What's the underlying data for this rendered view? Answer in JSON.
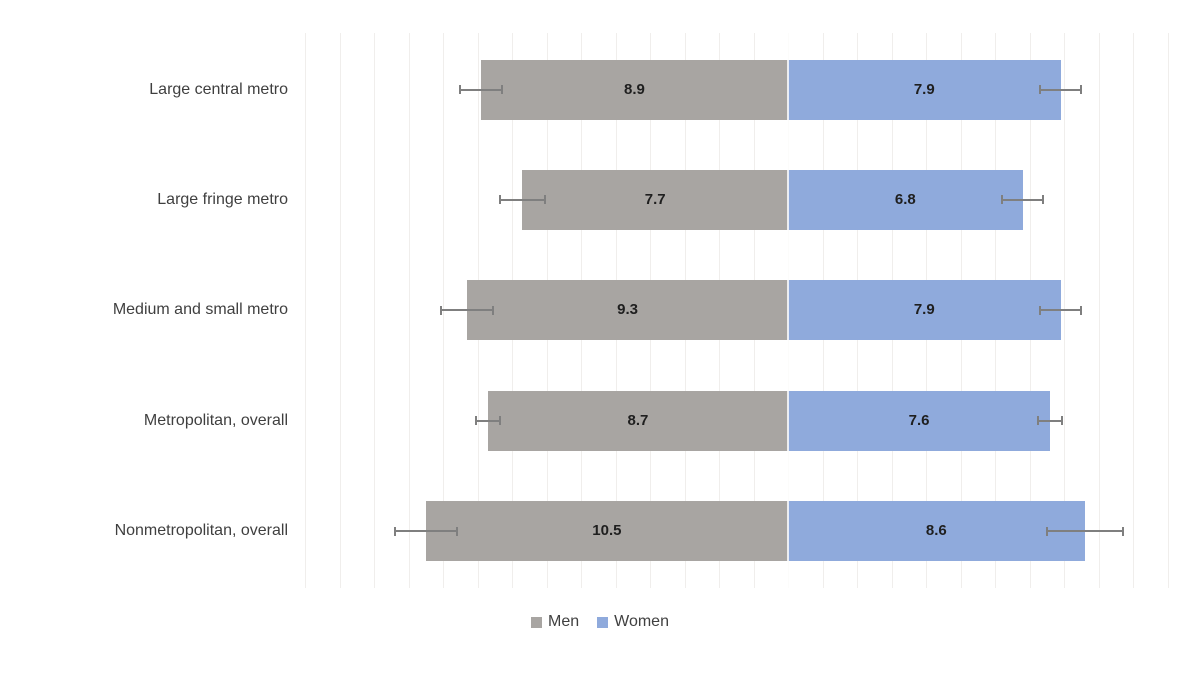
{
  "chart_data": {
    "type": "bar",
    "subtype": "diverging-horizontal",
    "title": "",
    "categories": [
      "Large central metro",
      "Large fringe metro",
      "Medium and small metro",
      "Metropolitan, overall",
      "Nonmetropolitan, overall"
    ],
    "series": [
      {
        "name": "Men",
        "direction": "left",
        "color": "#a8a5a2",
        "values": [
          8.9,
          7.7,
          9.3,
          8.7,
          10.5
        ],
        "error_bars": [
          0.6,
          0.65,
          0.75,
          0.35,
          0.9
        ]
      },
      {
        "name": "Women",
        "direction": "right",
        "color": "#8faadc",
        "values": [
          7.9,
          6.8,
          7.9,
          7.6,
          8.6
        ],
        "error_bars": [
          0.6,
          0.6,
          0.6,
          0.35,
          1.1
        ]
      }
    ],
    "value_labels_shown": true,
    "axis": {
      "gridline_spacing_units": 1,
      "gridline_color": "#f0eeec",
      "tick_labels_shown": false
    },
    "legend": {
      "position": "bottom-center",
      "entries": [
        {
          "label": "Men",
          "color": "#a8a5a2"
        },
        {
          "label": "Women",
          "color": "#8faadc"
        }
      ]
    },
    "error_bar_color": "#7f7f7f",
    "value_label_color": "#1f1f1f",
    "category_label_color": "#3f3f3f"
  }
}
